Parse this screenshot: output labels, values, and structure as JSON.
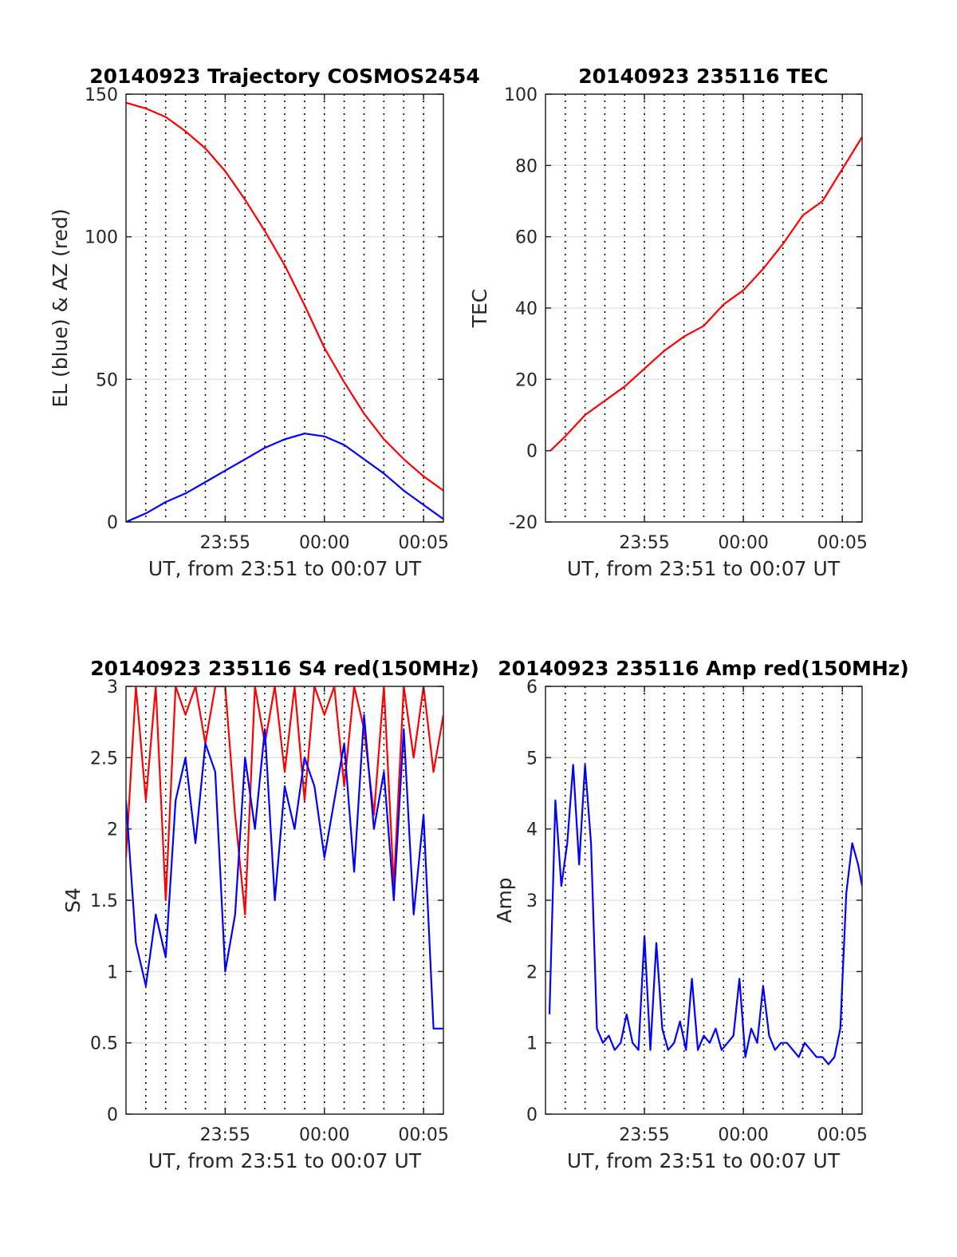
{
  "colors": {
    "red": "#ff0000",
    "blue": "#0000ff",
    "grid": "#dedede",
    "axis": "#262626"
  },
  "chart_data": [
    {
      "id": "trajectory",
      "type": "line",
      "title": "20140923 Trajectory COSMOS2454",
      "xlabel": "UT, from 23:51 to 00:07 UT",
      "ylabel": "EL (blue) & AZ (red)",
      "xlim": [
        -5,
        11
      ],
      "ylim": [
        0,
        150
      ],
      "xticks": [
        {
          "value": -0.0001,
          "label": "23:55"
        },
        {
          "value": 5,
          "label": "00:00"
        },
        {
          "value": 10,
          "label": "00:05"
        }
      ],
      "yticks": [
        {
          "value": 0,
          "label": "0"
        },
        {
          "value": 50,
          "label": "50"
        },
        {
          "value": 100,
          "label": "100"
        },
        {
          "value": 150,
          "label": "150"
        }
      ],
      "grid": true,
      "series": [
        {
          "color": "#ff0000",
          "x": [
            -5,
            -4,
            -3,
            -2,
            -1,
            0,
            1,
            2,
            3,
            4,
            5,
            6,
            7,
            8,
            9,
            10,
            11
          ],
          "y": [
            147,
            145,
            142,
            137,
            131,
            123,
            113,
            102,
            90,
            76,
            61,
            49,
            38,
            29,
            22,
            16,
            11
          ]
        },
        {
          "color": "#0000ff",
          "x": [
            -5,
            -4,
            -3,
            -2,
            -1,
            0,
            1,
            2,
            3,
            4,
            5,
            6,
            7,
            8,
            9,
            10,
            11
          ],
          "y": [
            0,
            3,
            7,
            10,
            14,
            18,
            22,
            26,
            29,
            31,
            30,
            27,
            22,
            17,
            11,
            6,
            1
          ]
        }
      ]
    },
    {
      "id": "tec",
      "type": "line",
      "title": "20140923 235116 TEC",
      "xlabel": "UT, from 23:51 to 00:07 UT",
      "ylabel": "TEC",
      "xlim": [
        -5,
        11
      ],
      "ylim": [
        -20,
        100
      ],
      "xticks": [
        {
          "value": -0.0001,
          "label": "23:55"
        },
        {
          "value": 5,
          "label": "00:00"
        },
        {
          "value": 10,
          "label": "00:05"
        }
      ],
      "yticks": [
        {
          "value": -20,
          "label": "-20"
        },
        {
          "value": 0,
          "label": "0"
        },
        {
          "value": 20,
          "label": "20"
        },
        {
          "value": 40,
          "label": "40"
        },
        {
          "value": 60,
          "label": "60"
        },
        {
          "value": 80,
          "label": "80"
        },
        {
          "value": 100,
          "label": "100"
        }
      ],
      "grid": true,
      "series": [
        {
          "color": "#ff0000",
          "x": [
            -4.75,
            -4,
            -3,
            -2,
            -1,
            0,
            1,
            2,
            3,
            4,
            5,
            6,
            7,
            8,
            9,
            10,
            11
          ],
          "y": [
            0,
            4,
            10,
            14,
            18,
            23,
            28,
            32,
            35,
            41,
            45,
            51,
            58,
            66,
            70,
            79,
            88
          ]
        }
      ]
    },
    {
      "id": "s4",
      "type": "line",
      "title": "20140923 235116 S4 red(150MHz)",
      "xlabel": "UT, from 23:51 to 00:07 UT",
      "ylabel": "S4",
      "xlim": [
        -5,
        11
      ],
      "ylim": [
        0,
        3
      ],
      "xticks": [
        {
          "value": -0.0001,
          "label": "23:55"
        },
        {
          "value": 5,
          "label": "00:00"
        },
        {
          "value": 10,
          "label": "00:05"
        }
      ],
      "yticks": [
        {
          "value": 0,
          "label": "0"
        },
        {
          "value": 0.5,
          "label": "0.5"
        },
        {
          "value": 1,
          "label": "1"
        },
        {
          "value": 1.5,
          "label": "1.5"
        },
        {
          "value": 2,
          "label": "2"
        },
        {
          "value": 2.5,
          "label": "2.5"
        },
        {
          "value": 3,
          "label": "3"
        }
      ],
      "grid": true,
      "series": [
        {
          "color": "#ff0000",
          "x": [
            -5,
            -4.5,
            -4,
            -3.5,
            -3,
            -2.5,
            -2,
            -1.5,
            -1,
            -0.5,
            0,
            0.5,
            1,
            1.5,
            2,
            2.5,
            3,
            3.5,
            4,
            4.5,
            5,
            5.5,
            6,
            6.5,
            7,
            7.5,
            8,
            8.5,
            9,
            9.5,
            10,
            10.5,
            11
          ],
          "y": [
            1.8,
            3,
            2.2,
            3,
            1.5,
            3,
            2.8,
            3,
            2.6,
            3,
            3,
            2.1,
            1.4,
            3,
            2.6,
            3,
            2.4,
            3,
            2.2,
            3,
            2.8,
            3,
            2.3,
            3,
            2.7,
            2.1,
            3,
            1.6,
            3,
            2.5,
            3,
            2.4,
            2.8
          ]
        },
        {
          "color": "#0000ff",
          "x": [
            -5,
            -4.5,
            -4,
            -3.5,
            -3,
            -2.5,
            -2,
            -1.5,
            -1,
            -0.5,
            0,
            0.5,
            1,
            1.5,
            2,
            2.5,
            3,
            3.5,
            4,
            4.5,
            5,
            5.5,
            6,
            6.5,
            7,
            7.5,
            8,
            8.5,
            9,
            9.5,
            10,
            10.5,
            11
          ],
          "y": [
            2.2,
            1.2,
            0.9,
            1.4,
            1.1,
            2.2,
            2.5,
            1.9,
            2.6,
            2.4,
            1.0,
            1.4,
            2.5,
            2.0,
            2.7,
            1.5,
            2.3,
            2.0,
            2.5,
            2.3,
            1.8,
            2.2,
            2.6,
            1.7,
            2.8,
            2.0,
            2.4,
            1.5,
            2.7,
            1.4,
            2.1,
            0.6,
            0.6
          ]
        }
      ]
    },
    {
      "id": "amp",
      "type": "line",
      "title": "20140923 235116 Amp red(150MHz)",
      "xlabel": "UT, from 23:51 to 00:07 UT",
      "ylabel": "Amp",
      "xlim": [
        -5,
        11
      ],
      "ylim": [
        0,
        6
      ],
      "xticks": [
        {
          "value": -0.0001,
          "label": "23:55"
        },
        {
          "value": 5,
          "label": "00:00"
        },
        {
          "value": 10,
          "label": "00:05"
        }
      ],
      "yticks": [
        {
          "value": 0,
          "label": "0"
        },
        {
          "value": 1,
          "label": "1"
        },
        {
          "value": 2,
          "label": "2"
        },
        {
          "value": 3,
          "label": "3"
        },
        {
          "value": 4,
          "label": "4"
        },
        {
          "value": 5,
          "label": "5"
        },
        {
          "value": 6,
          "label": "6"
        }
      ],
      "grid": true,
      "series": [
        {
          "color": "#0000ff",
          "x": [
            -4.8,
            -4.5,
            -4.2,
            -3.9,
            -3.6,
            -3.3,
            -3,
            -2.7,
            -2.4,
            -2.1,
            -1.8,
            -1.5,
            -1.2,
            -0.9,
            -0.6,
            -0.3,
            0,
            0.3,
            0.6,
            0.9,
            1.2,
            1.5,
            1.8,
            2.1,
            2.4,
            2.7,
            3,
            3.3,
            3.6,
            3.9,
            4.2,
            4.5,
            4.8,
            5.1,
            5.4,
            5.7,
            6,
            6.3,
            6.6,
            6.9,
            7.2,
            7.5,
            7.8,
            8.1,
            8.4,
            8.7,
            9,
            9.3,
            9.6,
            9.9,
            10.2,
            10.5,
            10.8,
            11
          ],
          "y": [
            1.4,
            4.4,
            3.2,
            3.8,
            4.9,
            3.5,
            4.9,
            3.8,
            1.2,
            1.0,
            1.1,
            0.9,
            1.0,
            1.4,
            1.0,
            0.9,
            2.5,
            0.9,
            2.4,
            1.2,
            0.9,
            1.0,
            1.3,
            0.9,
            1.9,
            0.9,
            1.1,
            1.0,
            1.2,
            0.9,
            1.0,
            1.1,
            1.9,
            0.8,
            1.2,
            1.0,
            1.8,
            1.1,
            0.9,
            1.0,
            1.0,
            0.9,
            0.8,
            1.0,
            0.9,
            0.8,
            0.8,
            0.7,
            0.8,
            1.2,
            3.1,
            3.8,
            3.5,
            3.2
          ]
        }
      ]
    }
  ]
}
